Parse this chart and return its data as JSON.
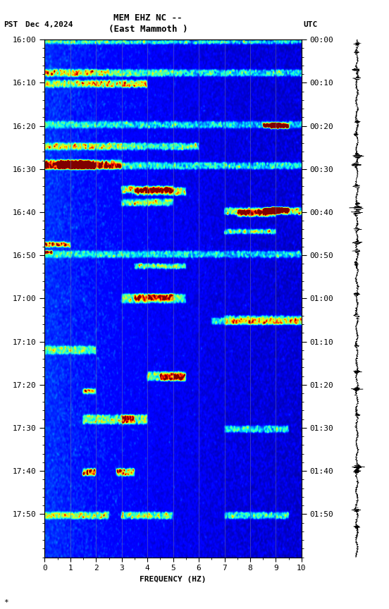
{
  "title_line1": "MEM EHZ NC --",
  "title_line2": "(East Mammoth )",
  "left_label": "PST   Dec 4,2024",
  "right_label": "UTC",
  "pst_times": [
    "16:00",
    "16:10",
    "16:20",
    "16:30",
    "16:40",
    "16:50",
    "17:00",
    "17:10",
    "17:20",
    "17:30",
    "17:40",
    "17:50"
  ],
  "utc_times": [
    "00:00",
    "00:10",
    "00:20",
    "00:30",
    "00:40",
    "00:50",
    "01:00",
    "01:10",
    "01:20",
    "01:30",
    "01:40",
    "01:50"
  ],
  "freq_min": 0,
  "freq_max": 10,
  "time_min": 0,
  "time_max": 120,
  "xlabel": "FREQUENCY (HZ)",
  "freq_ticks": [
    0,
    1,
    2,
    3,
    4,
    5,
    6,
    7,
    8,
    9,
    10
  ],
  "vline_positions": [
    1,
    2,
    3,
    4,
    5,
    6,
    7,
    8,
    9
  ],
  "title_fontsize": 9,
  "label_fontsize": 8,
  "tick_fontsize": 8
}
